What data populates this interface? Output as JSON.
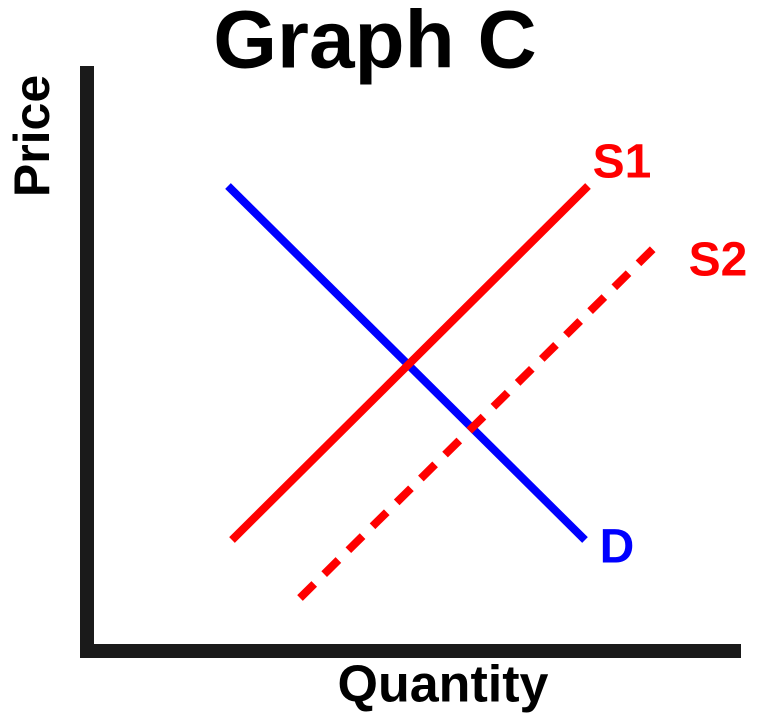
{
  "title": "Graph C",
  "axes": {
    "y_label": "Price",
    "x_label": "Quantity"
  },
  "curves": [
    {
      "label": "S1"
    },
    {
      "label": "S2"
    },
    {
      "label": "D"
    }
  ]
}
